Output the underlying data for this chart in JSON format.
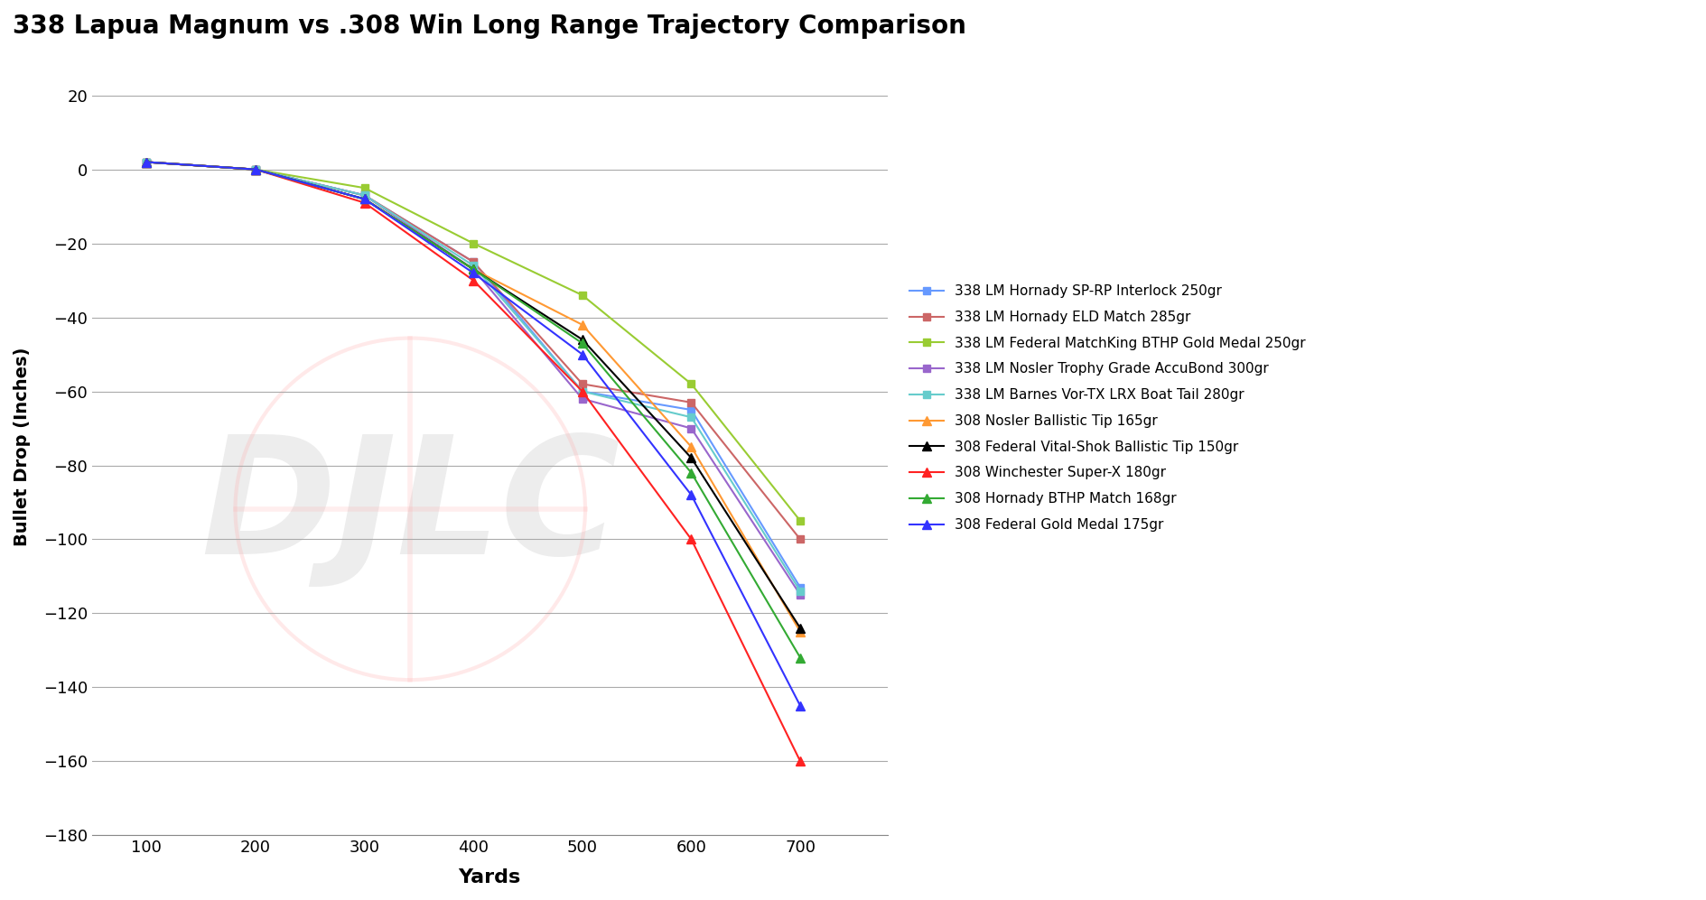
{
  "title": "338 Lapua Magnum vs .308 Win Long Range Trajectory Comparison",
  "xlabel": "Yards",
  "ylabel": "Bullet Drop (Inches)",
  "x_values": [
    100,
    200,
    300,
    400,
    500,
    600,
    700
  ],
  "ylim": [
    -180,
    30
  ],
  "xlim": [
    50,
    780
  ],
  "yticks": [
    20,
    0,
    -20,
    -40,
    -60,
    -80,
    -100,
    -120,
    -140,
    -160,
    -180
  ],
  "xticks": [
    100,
    200,
    300,
    400,
    500,
    600,
    700
  ],
  "series": [
    {
      "label": "338 LM Hornady SP-RP Interlock 250gr",
      "color": "#6699FF",
      "marker": "s",
      "markersize": 6,
      "linewidth": 1.5,
      "values": [
        2,
        0,
        -7,
        -25,
        -60,
        -65,
        -113
      ]
    },
    {
      "label": "338 LM Hornady ELD Match 285gr",
      "color": "#CC6666",
      "marker": "s",
      "markersize": 6,
      "linewidth": 1.5,
      "values": [
        2,
        0,
        -7,
        -25,
        -58,
        -63,
        -100
      ]
    },
    {
      "label": "338 LM Federal MatchKing BTHP Gold Medal 250gr",
      "color": "#99CC33",
      "marker": "s",
      "markersize": 6,
      "linewidth": 1.5,
      "values": [
        2,
        0,
        -5,
        -20,
        -34,
        -58,
        -95
      ]
    },
    {
      "label": "338 LM Nosler Trophy Grade AccuBond 300gr",
      "color": "#9966CC",
      "marker": "s",
      "markersize": 6,
      "linewidth": 1.5,
      "values": [
        2,
        0,
        -7,
        -27,
        -62,
        -70,
        -115
      ]
    },
    {
      "label": "338 LM Barnes Vor-TX LRX Boat Tail 280gr",
      "color": "#66CCCC",
      "marker": "s",
      "markersize": 6,
      "linewidth": 1.5,
      "values": [
        2,
        0,
        -7,
        -26,
        -60,
        -67,
        -114
      ]
    },
    {
      "label": "308 Nosler Ballistic Tip 165gr",
      "color": "#FF9933",
      "marker": "^",
      "markersize": 7,
      "linewidth": 1.5,
      "values": [
        2,
        0,
        -8,
        -27,
        -42,
        -75,
        -125
      ]
    },
    {
      "label": "308 Federal Vital-Shok Ballistic Tip 150gr",
      "color": "#000000",
      "marker": "^",
      "markersize": 7,
      "linewidth": 1.5,
      "values": [
        2,
        0,
        -8,
        -27,
        -46,
        -78,
        -124
      ]
    },
    {
      "label": "308 Winchester Super-X 180gr",
      "color": "#FF2222",
      "marker": "^",
      "markersize": 7,
      "linewidth": 1.5,
      "values": [
        2,
        0,
        -9,
        -30,
        -60,
        -100,
        -160
      ]
    },
    {
      "label": "308 Hornady BTHP Match 168gr",
      "color": "#33AA33",
      "marker": "^",
      "markersize": 7,
      "linewidth": 1.5,
      "values": [
        2,
        0,
        -8,
        -27,
        -47,
        -82,
        -132
      ]
    },
    {
      "label": "308 Federal Gold Medal 175gr",
      "color": "#3333FF",
      "marker": "^",
      "markersize": 7,
      "linewidth": 1.5,
      "values": [
        2,
        0,
        -8,
        -28,
        -50,
        -88,
        -145
      ]
    }
  ],
  "background_color": "#FFFFFF",
  "grid_color": "#AAAAAA",
  "watermark_text": "DJLC",
  "watermark_color": "#CCCCCC",
  "circle_color": "#FFAAAA",
  "cross_color": "#FFAAAA"
}
